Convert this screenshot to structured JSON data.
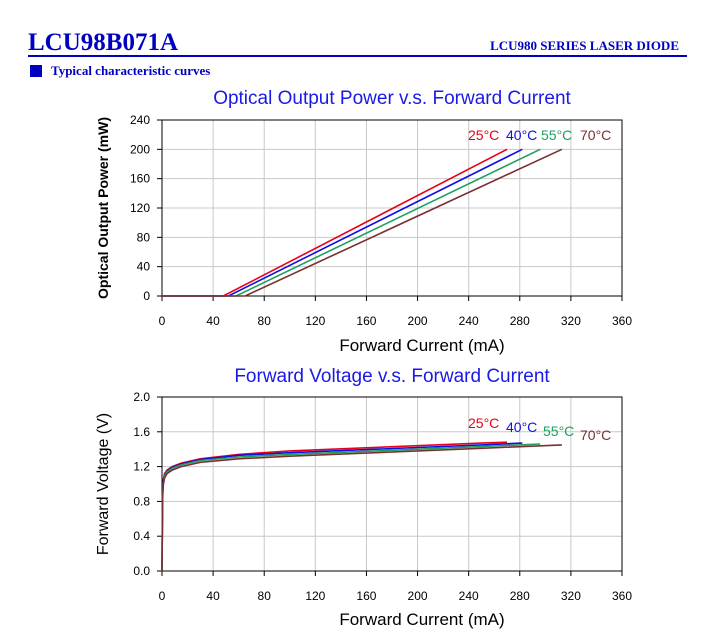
{
  "header": {
    "model": "LCU98B071A",
    "series": "LCU980 SERIES LASER DIODE",
    "section": "Typical characteristic curves"
  },
  "colors": {
    "header_blue": "#0000c0",
    "title_blue": "#1a1ae6",
    "t25": "#e8001c",
    "t40": "#1010e0",
    "t55": "#1f9f5f",
    "t70": "#7a3030",
    "grid": "#c8c8c8"
  },
  "chart_data": [
    {
      "type": "line",
      "title": "Optical Output Power v.s. Forward Current",
      "xlabel": "Forward Current (mA)",
      "ylabel": "Optical Output Power (mW)",
      "xlim": [
        0,
        360
      ],
      "ylim": [
        0,
        240
      ],
      "xticks": [
        "0",
        "40",
        "80",
        "120",
        "160",
        "200",
        "240",
        "280",
        "320",
        "360"
      ],
      "yticks": [
        "0",
        "40",
        "80",
        "120",
        "160",
        "200",
        "240"
      ],
      "grid": true,
      "series": [
        {
          "name": "25°C",
          "color_key": "t25",
          "x": [
            0,
            48,
            270
          ],
          "y": [
            0,
            0,
            200
          ]
        },
        {
          "name": "40°C",
          "color_key": "t40",
          "x": [
            0,
            52,
            282
          ],
          "y": [
            0,
            0,
            200
          ]
        },
        {
          "name": "55°C",
          "color_key": "t55",
          "x": [
            0,
            58,
            296
          ],
          "y": [
            0,
            0,
            200
          ]
        },
        {
          "name": "70°C",
          "color_key": "t70",
          "x": [
            0,
            65,
            313
          ],
          "y": [
            0,
            0,
            200
          ]
        }
      ]
    },
    {
      "type": "line",
      "title": "Forward Voltage v.s. Forward Current",
      "xlabel": "Forward Current (mA)",
      "ylabel": "Forward Voltage (V)",
      "xlim": [
        0,
        360
      ],
      "ylim": [
        0,
        2.0
      ],
      "xticks": [
        "0",
        "40",
        "80",
        "120",
        "160",
        "200",
        "240",
        "280",
        "320",
        "360"
      ],
      "yticks": [
        "0.0",
        "0.4",
        "0.8",
        "1.2",
        "1.6",
        "2.0"
      ],
      "grid": true,
      "series": [
        {
          "name": "25°C",
          "color_key": "t25",
          "x": [
            0,
            0.5,
            1,
            2,
            4,
            8,
            15,
            30,
            60,
            100,
            150,
            200,
            250,
            270
          ],
          "y": [
            0,
            0.9,
            1.05,
            1.12,
            1.16,
            1.2,
            1.24,
            1.29,
            1.34,
            1.38,
            1.41,
            1.44,
            1.47,
            1.48
          ]
        },
        {
          "name": "40°C",
          "color_key": "t40",
          "x": [
            0,
            0.5,
            1,
            2,
            4,
            8,
            15,
            30,
            60,
            100,
            150,
            200,
            250,
            282
          ],
          "y": [
            0,
            0.88,
            1.03,
            1.1,
            1.15,
            1.19,
            1.23,
            1.28,
            1.33,
            1.36,
            1.39,
            1.42,
            1.45,
            1.47
          ]
        },
        {
          "name": "55°C",
          "color_key": "t55",
          "x": [
            0,
            0.5,
            1,
            2,
            4,
            8,
            15,
            30,
            60,
            100,
            150,
            200,
            250,
            296
          ],
          "y": [
            0,
            0.86,
            1.01,
            1.09,
            1.14,
            1.18,
            1.22,
            1.27,
            1.31,
            1.34,
            1.37,
            1.4,
            1.43,
            1.46
          ]
        },
        {
          "name": "70°C",
          "color_key": "t70",
          "x": [
            0,
            0.5,
            1,
            2,
            4,
            8,
            15,
            30,
            60,
            100,
            150,
            200,
            250,
            313
          ],
          "y": [
            0,
            0.84,
            0.99,
            1.07,
            1.12,
            1.16,
            1.2,
            1.25,
            1.29,
            1.32,
            1.35,
            1.38,
            1.41,
            1.45
          ]
        }
      ]
    }
  ]
}
